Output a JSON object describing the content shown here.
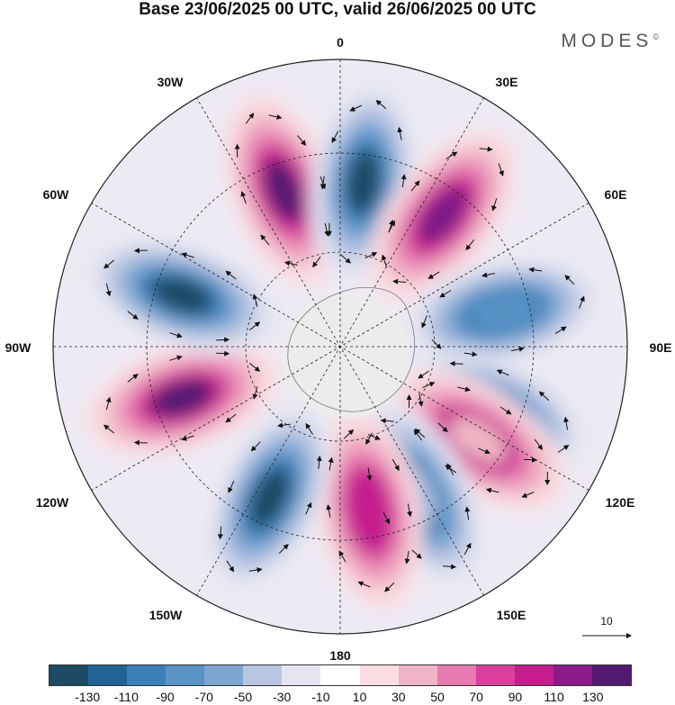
{
  "title": "Base 23/06/2025 00 UTC, valid 26/06/2025 00 UTC",
  "brand": "MODES",
  "brand_mark": "©",
  "map": {
    "projection": "south-polar-stereographic",
    "longitude_labels": {
      "lon_0": "0",
      "lon_30e": "30E",
      "lon_60e": "60E",
      "lon_90e": "90E",
      "lon_120e": "120E",
      "lon_150e": "150E",
      "lon_180": "180",
      "lon_150w": "150W",
      "lon_120w": "120W",
      "lon_90w": "90W",
      "lon_60w": "60W",
      "lon_30w": "30W"
    },
    "reference_vector_label": "10",
    "anomaly_centers": [
      {
        "sign": "positive",
        "lon_deg": -20,
        "color": "#531a72"
      },
      {
        "sign": "negative",
        "lon_deg": 8,
        "color": "#1f4a63"
      },
      {
        "sign": "positive",
        "lon_deg": 38,
        "color": "#7e1b86"
      },
      {
        "sign": "negative",
        "lon_deg": 78,
        "color": "#5a93c6"
      },
      {
        "sign": "negative",
        "lon_deg": 113,
        "color": "#3b80b8"
      },
      {
        "sign": "positive",
        "lon_deg": 124,
        "color": "#f0b8c5"
      },
      {
        "sign": "negative",
        "lon_deg": 152,
        "color": "#9cb4da"
      },
      {
        "sign": "positive",
        "lon_deg": 170,
        "color": "#c51c8e"
      },
      {
        "sign": "negative",
        "lon_deg": -155,
        "color": "#1f4a63"
      },
      {
        "sign": "positive",
        "lon_deg": -108,
        "color": "#531a72"
      },
      {
        "sign": "negative",
        "lon_deg": -72,
        "color": "#1f4a63"
      }
    ]
  },
  "colorbar": {
    "bins": [
      "#1f4a63",
      "#1f6494",
      "#3b80b8",
      "#5a93c6",
      "#7ea6d4",
      "#b9c6e2",
      "#e5e5f2",
      "#ffffff",
      "#f9dde2",
      "#f1b4c6",
      "#e77ab0",
      "#da3fa0",
      "#c51c8e",
      "#8c1a8c",
      "#531a72"
    ],
    "tick_labels": [
      "-130",
      "-110",
      "-90",
      "-70",
      "-50",
      "-30",
      "-10",
      "10",
      "30",
      "50",
      "70",
      "90",
      "110",
      "130"
    ]
  }
}
